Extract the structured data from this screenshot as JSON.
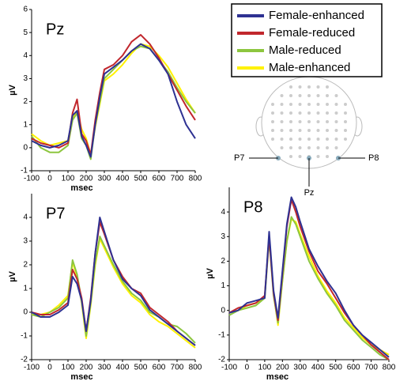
{
  "chart_data": [
    {
      "type": "line",
      "title": "Pz",
      "x_label": "msec",
      "y_label": "µV",
      "x": [
        -100,
        -50,
        0,
        50,
        100,
        125,
        150,
        175,
        200,
        225,
        250,
        275,
        300,
        350,
        400,
        450,
        500,
        550,
        600,
        650,
        700,
        750,
        800
      ],
      "xlim": [
        -100,
        800
      ],
      "xticks": [
        -100,
        0,
        100,
        200,
        300,
        400,
        500,
        600,
        700,
        800
      ],
      "ylim": [
        -1,
        6
      ],
      "yticks": [
        -1,
        0,
        1,
        2,
        3,
        4,
        5,
        6
      ],
      "series": [
        {
          "name": "Female-enhanced",
          "color": "#2e3192",
          "values": [
            0.3,
            0.1,
            0,
            0.1,
            0.3,
            1.4,
            1.6,
            0.5,
            0.1,
            -0.4,
            1.0,
            2.2,
            3.2,
            3.5,
            3.8,
            4.2,
            4.5,
            4.3,
            3.8,
            3.2,
            2.0,
            1.0,
            0.4
          ]
        },
        {
          "name": "Female-reduced",
          "color": "#c1272d",
          "values": [
            0.4,
            0.2,
            0.1,
            0.0,
            0.2,
            1.5,
            2.1,
            0.6,
            0.3,
            -0.3,
            1.2,
            2.4,
            3.4,
            3.6,
            4.0,
            4.6,
            4.9,
            4.5,
            3.9,
            3.2,
            2.5,
            1.8,
            1.2
          ]
        },
        {
          "name": "Male-reduced",
          "color": "#8dc63f",
          "values": [
            0.5,
            0.0,
            -0.2,
            -0.2,
            0.1,
            1.2,
            1.5,
            0.4,
            0.1,
            -0.5,
            1.0,
            2.0,
            3.0,
            3.4,
            3.8,
            4.2,
            4.4,
            4.3,
            3.8,
            3.3,
            2.6,
            2.0,
            1.5
          ]
        },
        {
          "name": "Male-enhanced",
          "color": "#fff200",
          "values": [
            0.6,
            0.3,
            0.1,
            0.2,
            0.3,
            1.3,
            1.6,
            0.8,
            0.4,
            -0.3,
            0.9,
            1.9,
            2.9,
            3.2,
            3.6,
            4.1,
            4.5,
            4.4,
            4.0,
            3.5,
            2.8,
            2.1,
            1.5
          ]
        }
      ]
    },
    {
      "type": "line",
      "title": "P7",
      "x_label": "msec",
      "y_label": "µV",
      "x": [
        -100,
        -50,
        0,
        50,
        100,
        125,
        150,
        175,
        200,
        225,
        250,
        275,
        300,
        350,
        400,
        450,
        500,
        550,
        600,
        650,
        700,
        750,
        800
      ],
      "xlim": [
        -100,
        800
      ],
      "xticks": [
        -100,
        0,
        100,
        200,
        300,
        400,
        500,
        600,
        700,
        800
      ],
      "ylim": [
        -2,
        5
      ],
      "yticks": [
        -2,
        -1,
        0,
        1,
        2,
        3,
        4
      ],
      "series": [
        {
          "values": [
            0,
            -0.2,
            -0.2,
            0,
            0.3,
            1.5,
            1.2,
            0.5,
            -0.8,
            0.5,
            2.5,
            4.0,
            3.4,
            2.2,
            1.4,
            1.0,
            0.7,
            0.1,
            -0.2,
            -0.5,
            -0.8,
            -1.1,
            -1.4
          ]
        },
        {
          "values": [
            0,
            -0.1,
            -0.1,
            0.1,
            0.4,
            1.8,
            1.4,
            0.6,
            -0.8,
            0.6,
            2.5,
            3.8,
            3.3,
            2.2,
            1.5,
            1.0,
            0.8,
            0.2,
            -0.1,
            -0.4,
            -0.8,
            -1.1,
            -1.4
          ]
        },
        {
          "values": [
            -0.1,
            -0.2,
            0,
            0.2,
            0.6,
            2.2,
            1.6,
            0.5,
            -1.0,
            0.4,
            2.1,
            3.2,
            2.8,
            2.0,
            1.3,
            0.8,
            0.5,
            0,
            -0.2,
            -0.5,
            -0.6,
            -0.9,
            -1.3
          ]
        },
        {
          "values": [
            -0.1,
            -0.1,
            0,
            0.3,
            0.7,
            2.1,
            1.5,
            0.4,
            -1.1,
            0.3,
            2.0,
            3.1,
            2.7,
            1.9,
            1.2,
            0.7,
            0.4,
            -0.1,
            -0.4,
            -0.6,
            -0.9,
            -1.2,
            -1.5
          ]
        }
      ]
    },
    {
      "type": "line",
      "title": "P8",
      "x_label": "msec",
      "y_label": "µV",
      "x": [
        -100,
        -50,
        0,
        50,
        100,
        125,
        150,
        175,
        200,
        225,
        250,
        275,
        300,
        350,
        400,
        450,
        500,
        550,
        600,
        650,
        700,
        750,
        800
      ],
      "xlim": [
        -100,
        800
      ],
      "xticks": [
        -100,
        0,
        100,
        200,
        300,
        400,
        500,
        600,
        700,
        800
      ],
      "ylim": [
        -2,
        5
      ],
      "yticks": [
        -2,
        -1,
        0,
        1,
        2,
        3,
        4
      ],
      "series": [
        {
          "values": [
            -0.1,
            0,
            0.3,
            0.4,
            0.5,
            3.2,
            0.8,
            -0.3,
            1.6,
            3.5,
            4.6,
            4.2,
            3.6,
            2.5,
            1.8,
            1.2,
            0.7,
            0,
            -0.6,
            -1.0,
            -1.3,
            -1.6,
            -1.9
          ]
        },
        {
          "values": [
            -0.1,
            0.1,
            0.2,
            0.3,
            0.6,
            3.0,
            0.7,
            -0.4,
            1.5,
            3.4,
            4.5,
            4.0,
            3.4,
            2.4,
            1.6,
            1.1,
            0.5,
            -0.1,
            -0.6,
            -1.0,
            -1.4,
            -1.7,
            -2.0
          ]
        },
        {
          "values": [
            -0.2,
            0,
            0.1,
            0.2,
            0.5,
            2.9,
            0.6,
            -0.5,
            1.2,
            2.8,
            3.8,
            3.5,
            3.0,
            2.0,
            1.3,
            0.7,
            0.2,
            -0.4,
            -0.8,
            -1.2,
            -1.5,
            -1.8,
            -2.0
          ]
        },
        {
          "values": [
            -0.1,
            0,
            0.2,
            0.3,
            0.5,
            3.0,
            0.7,
            -0.6,
            1.2,
            2.8,
            3.7,
            3.6,
            3.1,
            2.2,
            1.4,
            0.8,
            0.3,
            -0.3,
            -0.7,
            -1.1,
            -1.4,
            -1.6,
            -1.8
          ]
        }
      ]
    }
  ],
  "electrode_diagram": {
    "labels": [
      "P7",
      "P8",
      "Pz"
    ]
  }
}
